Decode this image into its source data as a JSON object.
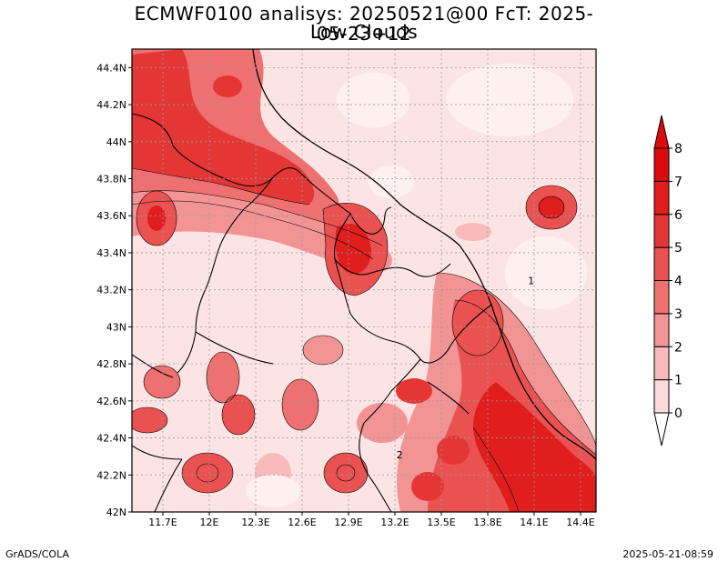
{
  "title": {
    "line1": "ECMWF0100 analisys: 20250521@00 FcT: 2025-05-23+12",
    "line2": "Low Clouds"
  },
  "footer": {
    "left": "GrADS/COLA",
    "right": "2025-05-21-08:59"
  },
  "map": {
    "lon_range": [
      11.5,
      14.5
    ],
    "lat_range": [
      42.0,
      44.5
    ],
    "x_ticks": [
      {
        "value": 11.7,
        "label": "11.7E"
      },
      {
        "value": 12.0,
        "label": "12E"
      },
      {
        "value": 12.3,
        "label": "12.3E"
      },
      {
        "value": 12.6,
        "label": "12.6E"
      },
      {
        "value": 12.9,
        "label": "12.9E"
      },
      {
        "value": 13.2,
        "label": "13.2E"
      },
      {
        "value": 13.5,
        "label": "13.5E"
      },
      {
        "value": 13.8,
        "label": "13.8E"
      },
      {
        "value": 14.1,
        "label": "14.1E"
      },
      {
        "value": 14.4,
        "label": "14.4E"
      }
    ],
    "y_ticks": [
      {
        "value": 42.0,
        "label": "42N"
      },
      {
        "value": 42.2,
        "label": "42.2N"
      },
      {
        "value": 42.4,
        "label": "42.4N"
      },
      {
        "value": 42.6,
        "label": "42.6N"
      },
      {
        "value": 42.8,
        "label": "42.8N"
      },
      {
        "value": 43.0,
        "label": "43N"
      },
      {
        "value": 43.2,
        "label": "43.2N"
      },
      {
        "value": 43.4,
        "label": "43.4N"
      },
      {
        "value": 43.6,
        "label": "43.6N"
      },
      {
        "value": 43.8,
        "label": "43.8N"
      },
      {
        "value": 44.0,
        "label": "44N"
      },
      {
        "value": 44.2,
        "label": "44.2N"
      },
      {
        "value": 44.4,
        "label": "44.4N"
      }
    ],
    "grid": true,
    "contour_labels": [
      {
        "lon": 13.23,
        "lat": 42.29,
        "text": "2"
      },
      {
        "lon": 14.08,
        "lat": 43.23,
        "text": "1"
      }
    ]
  },
  "colorbar": {
    "levels": [
      "0",
      "1",
      "2",
      "3",
      "4",
      "5",
      "6",
      "7",
      "8"
    ],
    "colors": [
      "#ffffff",
      "#fcdada",
      "#f8baba",
      "#f39494",
      "#ee7070",
      "#ea5252",
      "#e53636",
      "#e01e1e",
      "#dc0a0a"
    ]
  },
  "fill_colors": {
    "base": "#fde4e4",
    "ocean": "#fbd8d8"
  }
}
